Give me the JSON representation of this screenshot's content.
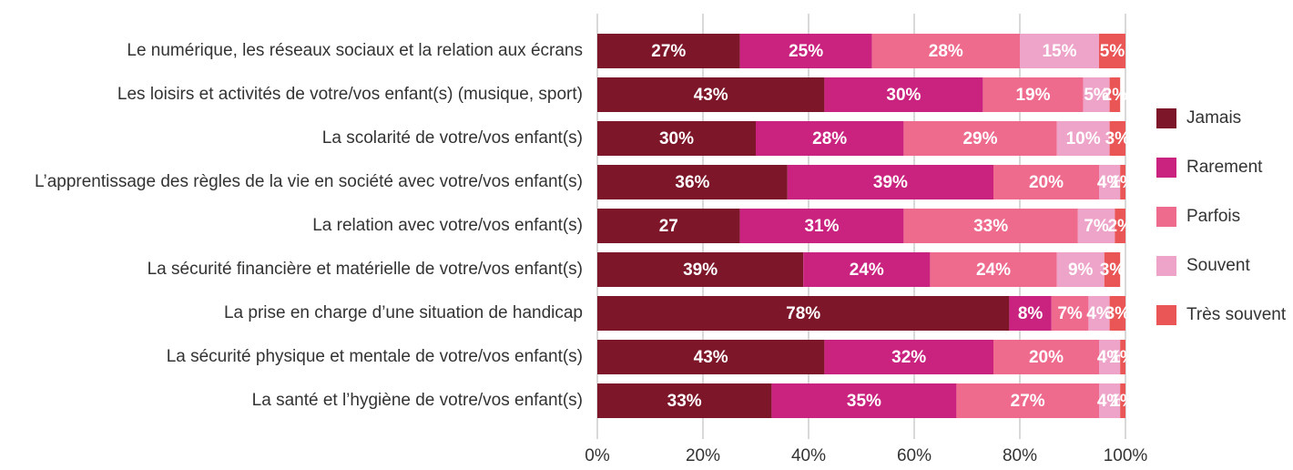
{
  "chart_data": {
    "type": "stacked-bar-horizontal",
    "categories": [
      "Le numérique, les réseaux sociaux et la relation aux écrans",
      "Les loisirs et activités de votre/vos enfant(s) (musique, sport)",
      "La scolarité de votre/vos enfant(s)",
      "L’apprentissage des règles de la vie en société avec votre/vos enfant(s)",
      "La relation avec votre/vos enfant(s)",
      "La sécurité financière et matérielle de votre/vos enfant(s)",
      "La prise en charge d’une situation de handicap",
      "La sécurité physique et mentale de votre/vos enfant(s)",
      "La santé et l’hygiène de votre/vos enfant(s)"
    ],
    "series": [
      {
        "name": "Jamais",
        "color": "#7c1628",
        "values": [
          27,
          43,
          30,
          36,
          27,
          39,
          78,
          43,
          33
        ],
        "value_labels": [
          "27%",
          "43%",
          "30%",
          "36%",
          "27",
          "39%",
          "78%",
          "43%",
          "33%"
        ]
      },
      {
        "name": "Rarement",
        "color": "#c9237f",
        "values": [
          25,
          30,
          28,
          39,
          31,
          24,
          8,
          32,
          35
        ],
        "value_labels": [
          "25%",
          "30%",
          "28%",
          "39%",
          "31%",
          "24%",
          "8%",
          "32%",
          "35%"
        ]
      },
      {
        "name": "Parfois",
        "color": "#ee6b8e",
        "values": [
          28,
          19,
          29,
          20,
          33,
          24,
          7,
          20,
          27
        ],
        "value_labels": [
          "28%",
          "19%",
          "29%",
          "20%",
          "33%",
          "24%",
          "7%",
          "20%",
          "27%"
        ]
      },
      {
        "name": "Souvent",
        "color": "#eea4c9",
        "values": [
          15,
          5,
          10,
          4,
          7,
          9,
          4,
          4,
          4
        ],
        "value_labels": [
          "15%",
          "5%",
          "10%",
          "4%",
          "7%",
          "9%",
          "4%",
          "4%",
          "4%"
        ]
      },
      {
        "name": "Très souvent",
        "color": "#ea5555",
        "values": [
          5,
          2,
          3,
          1,
          2,
          3,
          3,
          1,
          1
        ],
        "value_labels": [
          "5%",
          "2%",
          "3%",
          "1%",
          "2%",
          "3%",
          "3%",
          "1%",
          "1%"
        ]
      }
    ],
    "xlim": [
      0,
      100
    ],
    "xticks": [
      {
        "value": 0,
        "label": "0%"
      },
      {
        "value": 20,
        "label": "20%"
      },
      {
        "value": 40,
        "label": "40%"
      },
      {
        "value": 60,
        "label": "60%"
      },
      {
        "value": 80,
        "label": "80%"
      },
      {
        "value": 100,
        "label": "100%"
      }
    ],
    "grid": true,
    "legend": "right"
  }
}
